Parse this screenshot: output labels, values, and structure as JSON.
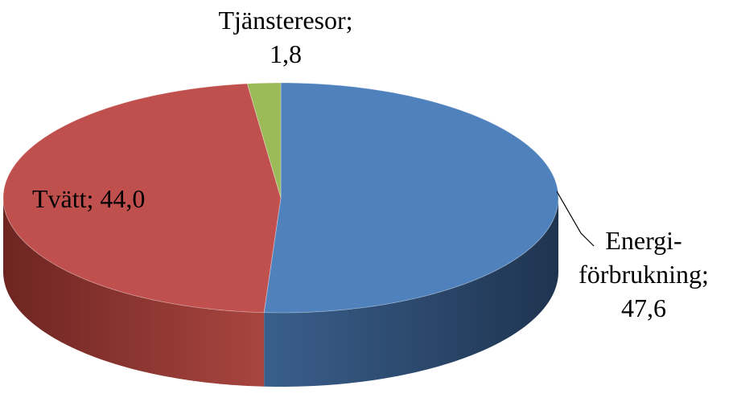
{
  "chart_data": {
    "type": "pie3d",
    "categories": [
      "Energi-förbrukning;",
      "Tvätt;",
      "Tjänsteresor;"
    ],
    "values": [
      47.6,
      44.0,
      1.8
    ],
    "value_labels": [
      "47,6",
      "44,0",
      "1,8"
    ],
    "colors": [
      "#4f81bd",
      "#c0504d",
      "#9bbb59"
    ],
    "side_colors": [
      [
        "#3a5f8c",
        "#1f3450"
      ],
      [
        "#a8453f",
        "#6e2522"
      ],
      [
        "#7a9446",
        "#4f612c"
      ]
    ]
  }
}
